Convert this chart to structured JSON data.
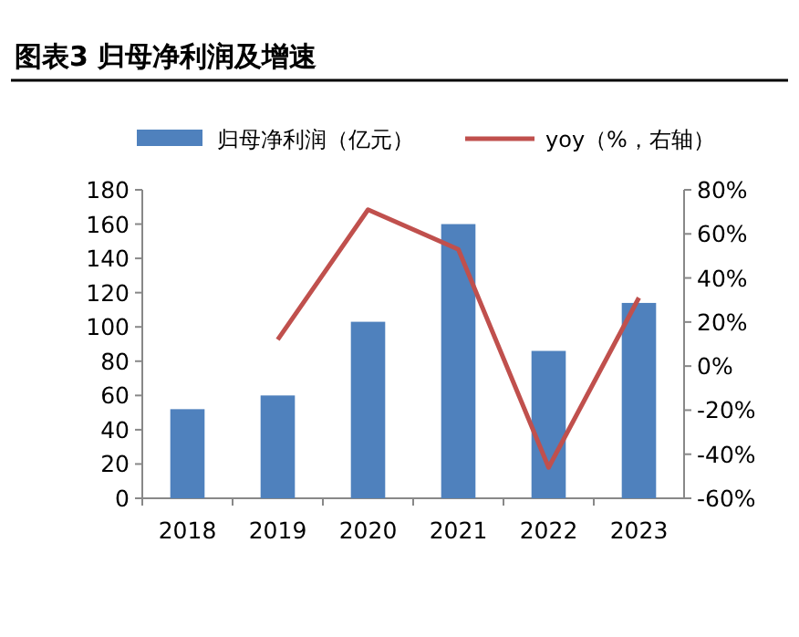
{
  "chart_data": {
    "type": "bar",
    "title": "图表3 归母净利润及增速",
    "categories": [
      "2018",
      "2019",
      "2020",
      "2021",
      "2022",
      "2023"
    ],
    "series": [
      {
        "name": "归母净利润（亿元）",
        "color": "#4f81bd",
        "values": [
          52,
          60,
          103,
          160,
          86,
          114
        ]
      },
      {
        "name": "yoy（%，右轴）",
        "type": "line",
        "axis": "y2",
        "color": "#c0504d",
        "values": [
          null,
          12,
          71,
          53,
          -46,
          31
        ]
      }
    ],
    "ylim": [
      0,
      180
    ],
    "yticks": [
      0,
      20,
      40,
      60,
      80,
      100,
      120,
      140,
      160,
      180
    ],
    "y2lim": [
      -60,
      80
    ],
    "y2ticks": [
      {
        "value": -60,
        "label": "-60%"
      },
      {
        "value": -40,
        "label": "-40%"
      },
      {
        "value": -20,
        "label": "-20%"
      },
      {
        "value": 0,
        "label": "0%"
      },
      {
        "value": 20,
        "label": "20%"
      },
      {
        "value": 40,
        "label": "40%"
      },
      {
        "value": 60,
        "label": "60%"
      },
      {
        "value": 80,
        "label": "80%"
      }
    ],
    "legend": "top",
    "grid": false,
    "marker": "none"
  }
}
